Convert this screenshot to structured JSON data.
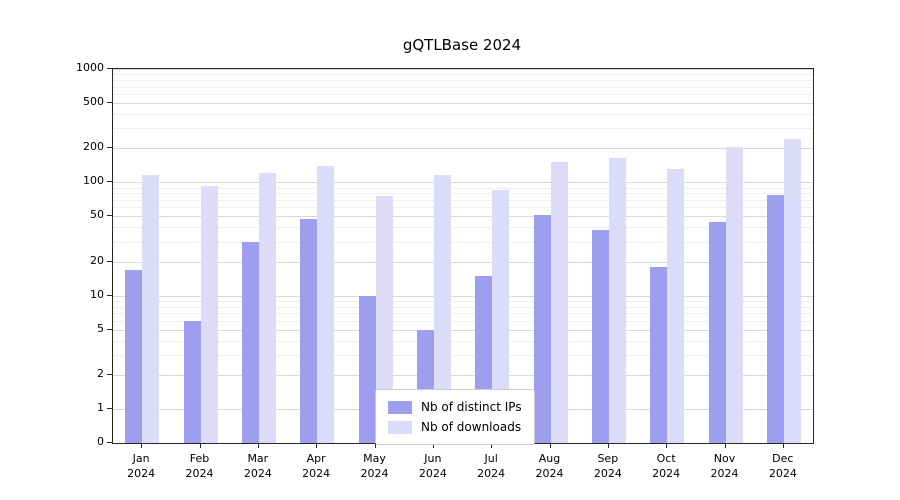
{
  "chart_data": {
    "type": "bar",
    "title": "gQTLBase 2024",
    "year_label": "2024",
    "categories": [
      "Jan",
      "Feb",
      "Mar",
      "Apr",
      "May",
      "Jun",
      "Jul",
      "Aug",
      "Sep",
      "Oct",
      "Nov",
      "Dec"
    ],
    "series": [
      {
        "name": "Nb of distinct IPs",
        "color": "#9e9eee",
        "values": [
          17,
          6,
          30,
          47,
          10,
          5,
          15,
          52,
          38,
          18,
          45,
          78
        ]
      },
      {
        "name": "Nb of downloads",
        "color": "#dddcf8",
        "values": [
          115,
          93,
          120,
          140,
          75,
          115,
          85,
          150,
          165,
          130,
          205,
          240
        ]
      }
    ],
    "yticks": [
      0,
      1,
      2,
      5,
      10,
      20,
      50,
      100,
      200,
      500,
      1000
    ],
    "yscale": "symlog",
    "ylim": [
      0,
      1000
    ],
    "xlabel": "",
    "ylabel": "",
    "grid": true,
    "legend_position": "lower center inside",
    "background_color": "#ffffff"
  }
}
